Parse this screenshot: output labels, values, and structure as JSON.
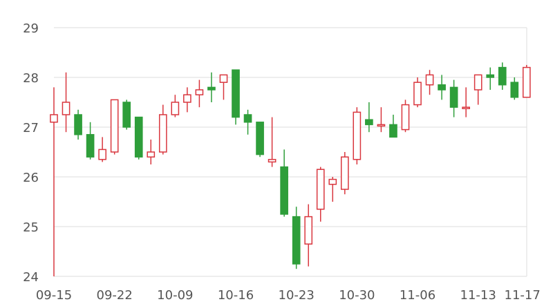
{
  "chart_data": {
    "type": "candlestick",
    "title": "",
    "xlabel": "",
    "ylabel": "",
    "ylim": [
      24,
      29
    ],
    "yticks": [
      24,
      25,
      26,
      27,
      28,
      29
    ],
    "grid": true,
    "x_tick_labels": [
      "09-15",
      "09-22",
      "10-09",
      "10-16",
      "10-23",
      "10-30",
      "11-06",
      "11-13",
      "11-17"
    ],
    "colors": {
      "up": "#d9363e",
      "down": "#2e9e3a",
      "grid": "#dcdcdc",
      "axis_text": "#555555"
    },
    "candles": [
      {
        "date": "09-15",
        "open": 27.1,
        "high": 27.8,
        "low": 24.0,
        "close": 27.25
      },
      {
        "date": "09-18",
        "open": 27.25,
        "high": 28.1,
        "low": 26.9,
        "close": 27.5
      },
      {
        "date": "09-19",
        "open": 27.25,
        "high": 27.35,
        "low": 26.75,
        "close": 26.85
      },
      {
        "date": "09-20",
        "open": 26.85,
        "high": 27.1,
        "low": 26.35,
        "close": 26.4
      },
      {
        "date": "09-21",
        "open": 26.35,
        "high": 26.8,
        "low": 26.3,
        "close": 26.55
      },
      {
        "date": "09-22",
        "open": 26.5,
        "high": 27.55,
        "low": 26.45,
        "close": 27.55
      },
      {
        "date": "09-25",
        "open": 27.5,
        "high": 27.55,
        "low": 26.95,
        "close": 27.0
      },
      {
        "date": "09-26",
        "open": 27.2,
        "high": 27.2,
        "low": 26.35,
        "close": 26.4
      },
      {
        "date": "09-27",
        "open": 26.4,
        "high": 26.75,
        "low": 26.25,
        "close": 26.5
      },
      {
        "date": "09-28",
        "open": 26.5,
        "high": 27.45,
        "low": 26.45,
        "close": 27.25
      },
      {
        "date": "10-09",
        "open": 27.25,
        "high": 27.65,
        "low": 27.2,
        "close": 27.5
      },
      {
        "date": "10-10",
        "open": 27.5,
        "high": 27.8,
        "low": 27.3,
        "close": 27.65
      },
      {
        "date": "10-11",
        "open": 27.65,
        "high": 27.95,
        "low": 27.4,
        "close": 27.75
      },
      {
        "date": "10-12",
        "open": 27.8,
        "high": 28.1,
        "low": 27.5,
        "close": 27.75
      },
      {
        "date": "10-13",
        "open": 27.9,
        "high": 28.05,
        "low": 27.55,
        "close": 28.05
      },
      {
        "date": "10-16",
        "open": 28.15,
        "high": 28.15,
        "low": 27.05,
        "close": 27.2
      },
      {
        "date": "10-17",
        "open": 27.25,
        "high": 27.35,
        "low": 26.85,
        "close": 27.1
      },
      {
        "date": "10-18",
        "open": 27.1,
        "high": 27.1,
        "low": 26.4,
        "close": 26.45
      },
      {
        "date": "10-19",
        "open": 26.3,
        "high": 27.2,
        "low": 26.2,
        "close": 26.35
      },
      {
        "date": "10-20",
        "open": 26.2,
        "high": 26.55,
        "low": 25.2,
        "close": 25.25
      },
      {
        "date": "10-23",
        "open": 25.2,
        "high": 25.4,
        "low": 24.15,
        "close": 24.25
      },
      {
        "date": "10-24",
        "open": 24.65,
        "high": 25.45,
        "low": 24.2,
        "close": 25.2
      },
      {
        "date": "10-25",
        "open": 25.35,
        "high": 26.2,
        "low": 25.1,
        "close": 26.15
      },
      {
        "date": "10-26",
        "open": 25.85,
        "high": 26.0,
        "low": 25.5,
        "close": 25.95
      },
      {
        "date": "10-27",
        "open": 25.75,
        "high": 26.5,
        "low": 25.65,
        "close": 26.4
      },
      {
        "date": "10-30",
        "open": 26.35,
        "high": 27.4,
        "low": 26.25,
        "close": 27.3
      },
      {
        "date": "10-31",
        "open": 27.15,
        "high": 27.5,
        "low": 26.9,
        "close": 27.05
      },
      {
        "date": "11-01",
        "open": 27.05,
        "high": 27.4,
        "low": 26.9,
        "close": 27.05
      },
      {
        "date": "11-02",
        "open": 27.05,
        "high": 27.25,
        "low": 26.8,
        "close": 26.8
      },
      {
        "date": "11-03",
        "open": 26.95,
        "high": 27.55,
        "low": 26.9,
        "close": 27.45
      },
      {
        "date": "11-06",
        "open": 27.45,
        "high": 28.0,
        "low": 27.4,
        "close": 27.9
      },
      {
        "date": "11-07",
        "open": 27.85,
        "high": 28.15,
        "low": 27.65,
        "close": 28.05
      },
      {
        "date": "11-08",
        "open": 27.85,
        "high": 28.05,
        "low": 27.55,
        "close": 27.75
      },
      {
        "date": "11-09",
        "open": 27.8,
        "high": 27.95,
        "low": 27.2,
        "close": 27.4
      },
      {
        "date": "11-10",
        "open": 27.4,
        "high": 27.8,
        "low": 27.2,
        "close": 27.4
      },
      {
        "date": "11-13",
        "open": 27.75,
        "high": 28.05,
        "low": 27.45,
        "close": 28.05
      },
      {
        "date": "11-14",
        "open": 28.05,
        "high": 28.2,
        "low": 27.75,
        "close": 28.0
      },
      {
        "date": "11-15",
        "open": 28.2,
        "high": 28.3,
        "low": 27.75,
        "close": 27.85
      },
      {
        "date": "11-16",
        "open": 27.9,
        "high": 28.0,
        "low": 27.55,
        "close": 27.6
      },
      {
        "date": "11-17",
        "open": 27.6,
        "high": 28.25,
        "low": 27.6,
        "close": 28.2
      }
    ]
  }
}
